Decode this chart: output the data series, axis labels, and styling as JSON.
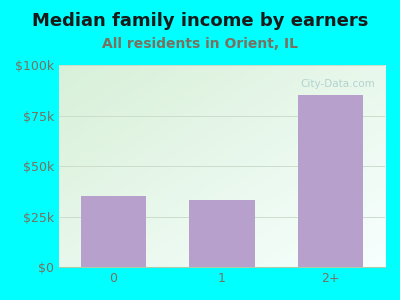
{
  "title": "Median family income by earners",
  "subtitle": "All residents in Orient, IL",
  "categories": [
    "0",
    "1",
    "2+"
  ],
  "values": [
    35000,
    33000,
    85000
  ],
  "bar_color": "#b8a0cc",
  "background_outer": "#00FFFF",
  "y_ticks": [
    0,
    25000,
    50000,
    75000,
    100000
  ],
  "y_tick_labels": [
    "$0",
    "$25k",
    "$50k",
    "$75k",
    "$100k"
  ],
  "ylim": [
    0,
    100000
  ],
  "title_color": "#1a1a1a",
  "subtitle_color": "#7a7060",
  "tick_color": "#7a7060",
  "title_fontsize": 13,
  "subtitle_fontsize": 10,
  "tick_fontsize": 9,
  "watermark": "City-Data.com",
  "gradient_top_left": "#d8f0d8",
  "gradient_bottom_right": "#f8ffff"
}
